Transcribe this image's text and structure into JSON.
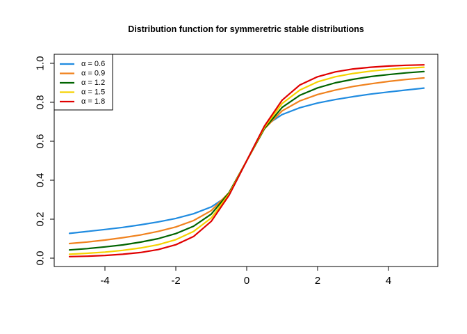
{
  "chart_data": {
    "type": "line",
    "title": "Distribution function for symmeretric stable distributions",
    "xlabel": "",
    "ylabel": "",
    "xlim": [
      -5,
      5
    ],
    "ylim": [
      0,
      1
    ],
    "x_ticks": [
      -4,
      -2,
      0,
      2,
      4
    ],
    "x_tick_labels": [
      "-4",
      "-2",
      "0",
      "2",
      "4"
    ],
    "y_ticks": [
      0,
      0.2,
      0.4,
      0.6,
      0.8,
      1
    ],
    "y_tick_labels": [
      "0.0",
      "0.2",
      "0.4",
      "0.6",
      "0.8",
      "1.0"
    ],
    "legend_position": "top-left",
    "grid": false,
    "x": [
      -5,
      -4.5,
      -4,
      -3.5,
      -3,
      -2.5,
      -2,
      -1.5,
      -1,
      -0.5,
      0,
      0.5,
      1,
      1.5,
      2,
      2.5,
      3,
      3.5,
      4,
      4.5,
      5
    ],
    "series": [
      {
        "name": "α  = 0.6",
        "color": "#1f8be0",
        "values": [
          0.127,
          0.137,
          0.147,
          0.158,
          0.171,
          0.186,
          0.204,
          0.228,
          0.263,
          0.323,
          0.5,
          0.677,
          0.737,
          0.772,
          0.796,
          0.814,
          0.829,
          0.842,
          0.853,
          0.863,
          0.873
        ]
      },
      {
        "name": "α  = 0.9",
        "color": "#f0821e",
        "values": [
          0.075,
          0.083,
          0.093,
          0.105,
          0.119,
          0.137,
          0.16,
          0.193,
          0.244,
          0.336,
          0.5,
          0.664,
          0.756,
          0.807,
          0.84,
          0.863,
          0.881,
          0.895,
          0.907,
          0.917,
          0.925
        ]
      },
      {
        "name": "α  = 1.2",
        "color": "#006400",
        "values": [
          0.042,
          0.049,
          0.058,
          0.068,
          0.082,
          0.1,
          0.126,
          0.164,
          0.226,
          0.335,
          0.5,
          0.665,
          0.774,
          0.836,
          0.874,
          0.9,
          0.918,
          0.932,
          0.942,
          0.951,
          0.958
        ]
      },
      {
        "name": "α  = 1.5",
        "color": "#f5d200",
        "values": [
          0.02,
          0.025,
          0.031,
          0.04,
          0.052,
          0.069,
          0.095,
          0.137,
          0.206,
          0.329,
          0.5,
          0.671,
          0.794,
          0.863,
          0.905,
          0.931,
          0.948,
          0.96,
          0.969,
          0.975,
          0.98
        ]
      },
      {
        "name": "α  = 1.8",
        "color": "#e00000",
        "values": [
          0.008,
          0.01,
          0.014,
          0.02,
          0.029,
          0.044,
          0.069,
          0.111,
          0.189,
          0.322,
          0.5,
          0.678,
          0.811,
          0.889,
          0.931,
          0.956,
          0.971,
          0.98,
          0.986,
          0.99,
          0.992
        ]
      }
    ]
  }
}
